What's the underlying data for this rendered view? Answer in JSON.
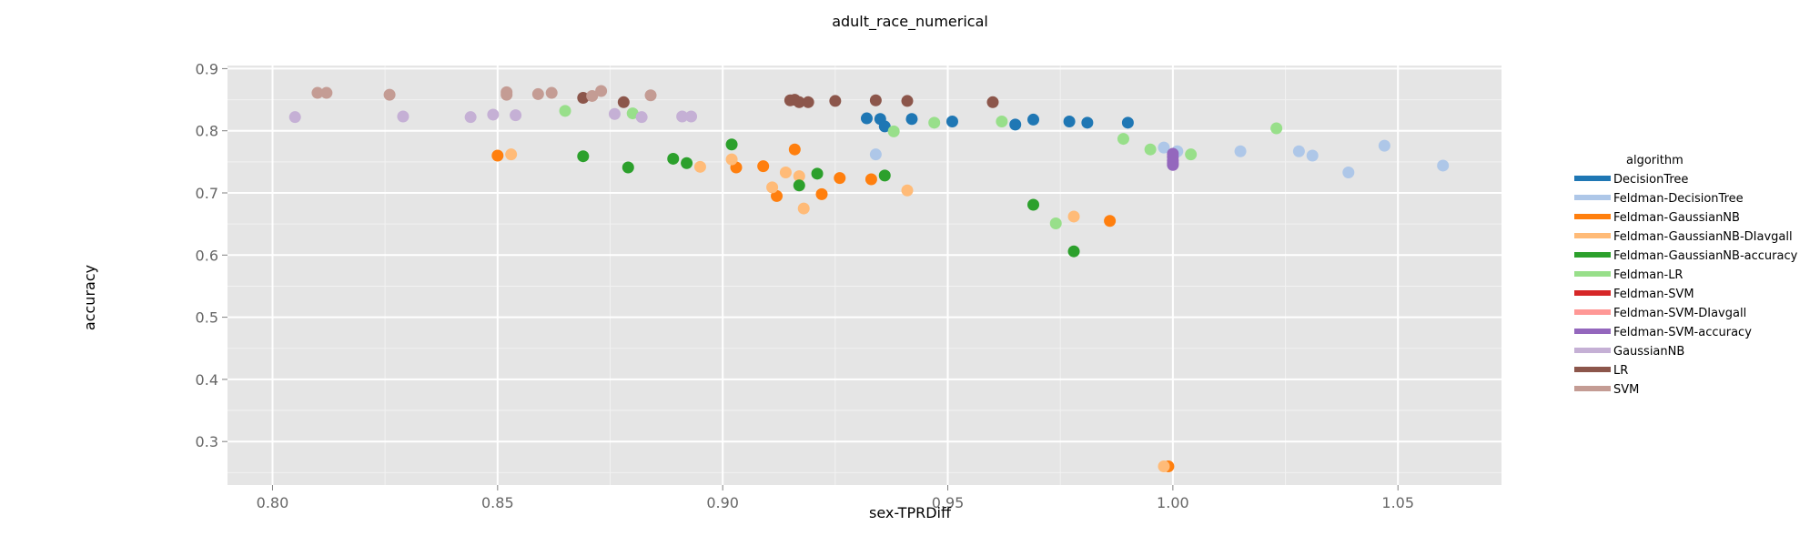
{
  "chart_data": {
    "type": "scatter",
    "title": "adult_race_numerical",
    "xlabel": "sex-TPRDiff",
    "ylabel": "accuracy",
    "xlim": [
      0.79,
      1.073
    ],
    "ylim": [
      0.23,
      0.905
    ],
    "x_ticks": [
      "0.80",
      "0.85",
      "0.90",
      "0.95",
      "1.00",
      "1.05"
    ],
    "y_ticks": [
      "0.3",
      "0.4",
      "0.5",
      "0.6",
      "0.7",
      "0.8",
      "0.9"
    ],
    "grid": true,
    "legend_title": "algorithm",
    "legend_position": "right",
    "series": [
      {
        "name": "DecisionTree",
        "color": "#1f77b4",
        "points": [
          [
            0.932,
            0.82
          ],
          [
            0.935,
            0.819
          ],
          [
            0.936,
            0.807
          ],
          [
            0.942,
            0.819
          ],
          [
            0.951,
            0.815
          ],
          [
            0.965,
            0.81
          ],
          [
            0.969,
            0.818
          ],
          [
            0.977,
            0.815
          ],
          [
            0.981,
            0.813
          ],
          [
            0.99,
            0.813
          ]
        ]
      },
      {
        "name": "Feldman-DecisionTree",
        "color": "#aec7e8",
        "points": [
          [
            0.934,
            0.762
          ],
          [
            0.998,
            0.773
          ],
          [
            1.001,
            0.767
          ],
          [
            1.015,
            0.767
          ],
          [
            1.028,
            0.767
          ],
          [
            1.031,
            0.76
          ],
          [
            1.039,
            0.733
          ],
          [
            1.047,
            0.776
          ],
          [
            1.06,
            0.744
          ]
        ]
      },
      {
        "name": "Feldman-GaussianNB",
        "color": "#ff7f0e",
        "points": [
          [
            0.85,
            0.76
          ],
          [
            0.903,
            0.741
          ],
          [
            0.909,
            0.743
          ],
          [
            0.912,
            0.695
          ],
          [
            0.916,
            0.77
          ],
          [
            0.922,
            0.698
          ],
          [
            0.926,
            0.724
          ],
          [
            0.933,
            0.722
          ],
          [
            0.986,
            0.655
          ],
          [
            0.999,
            0.26
          ]
        ]
      },
      {
        "name": "Feldman-GaussianNB-DIavgall",
        "color": "#ffbb78",
        "points": [
          [
            0.853,
            0.762
          ],
          [
            0.895,
            0.742
          ],
          [
            0.902,
            0.754
          ],
          [
            0.911,
            0.709
          ],
          [
            0.914,
            0.733
          ],
          [
            0.917,
            0.727
          ],
          [
            0.918,
            0.675
          ],
          [
            0.941,
            0.704
          ],
          [
            0.978,
            0.662
          ],
          [
            0.998,
            0.26
          ]
        ]
      },
      {
        "name": "Feldman-GaussianNB-accuracy",
        "color": "#2ca02c",
        "points": [
          [
            0.869,
            0.759
          ],
          [
            0.879,
            0.741
          ],
          [
            0.889,
            0.755
          ],
          [
            0.892,
            0.748
          ],
          [
            0.902,
            0.778
          ],
          [
            0.917,
            0.712
          ],
          [
            0.921,
            0.731
          ],
          [
            0.936,
            0.728
          ],
          [
            0.969,
            0.681
          ],
          [
            0.978,
            0.606
          ]
        ]
      },
      {
        "name": "Feldman-LR",
        "color": "#98df8a",
        "points": [
          [
            0.865,
            0.832
          ],
          [
            0.88,
            0.828
          ],
          [
            0.938,
            0.799
          ],
          [
            0.947,
            0.813
          ],
          [
            0.962,
            0.815
          ],
          [
            0.974,
            0.651
          ],
          [
            0.989,
            0.787
          ],
          [
            0.995,
            0.77
          ],
          [
            1.004,
            0.762
          ],
          [
            1.023,
            0.804
          ]
        ]
      },
      {
        "name": "Feldman-SVM",
        "color": "#d62728",
        "points": []
      },
      {
        "name": "Feldman-SVM-DIavgall",
        "color": "#ff9896",
        "points": []
      },
      {
        "name": "Feldman-SVM-accuracy",
        "color": "#9467bd",
        "points": [
          [
            1.0,
            0.745
          ],
          [
            1.0,
            0.752
          ],
          [
            1.0,
            0.758
          ],
          [
            1.0,
            0.763
          ],
          [
            1.0,
            0.748
          ]
        ]
      },
      {
        "name": "GaussianNB",
        "color": "#c5b0d5",
        "points": [
          [
            0.805,
            0.822
          ],
          [
            0.829,
            0.823
          ],
          [
            0.844,
            0.822
          ],
          [
            0.849,
            0.826
          ],
          [
            0.854,
            0.825
          ],
          [
            0.876,
            0.827
          ],
          [
            0.882,
            0.822
          ],
          [
            0.891,
            0.823
          ],
          [
            0.893,
            0.823
          ]
        ]
      },
      {
        "name": "LR",
        "color": "#8c564b",
        "points": [
          [
            0.869,
            0.853
          ],
          [
            0.878,
            0.846
          ],
          [
            0.915,
            0.849
          ],
          [
            0.916,
            0.85
          ],
          [
            0.917,
            0.846
          ],
          [
            0.919,
            0.846
          ],
          [
            0.925,
            0.848
          ],
          [
            0.934,
            0.849
          ],
          [
            0.941,
            0.848
          ],
          [
            0.96,
            0.846
          ]
        ]
      },
      {
        "name": "SVM",
        "color": "#c49c94",
        "points": [
          [
            0.81,
            0.861
          ],
          [
            0.812,
            0.861
          ],
          [
            0.826,
            0.858
          ],
          [
            0.852,
            0.858
          ],
          [
            0.852,
            0.862
          ],
          [
            0.859,
            0.859
          ],
          [
            0.862,
            0.861
          ],
          [
            0.871,
            0.856
          ],
          [
            0.873,
            0.864
          ],
          [
            0.884,
            0.857
          ]
        ]
      }
    ]
  }
}
